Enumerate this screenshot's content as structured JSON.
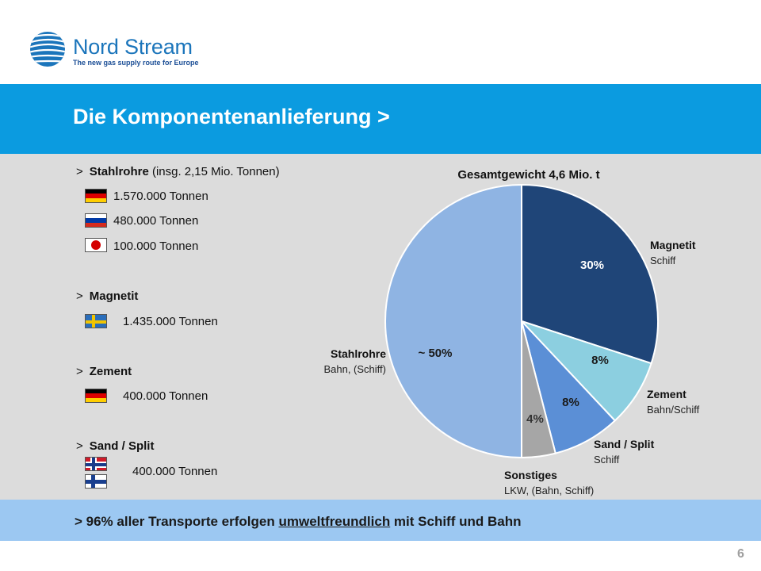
{
  "brand": {
    "name": "Nord Stream",
    "tagline": "The new gas supply route for Europe"
  },
  "slide": {
    "title": "Die Komponentenanlieferung >",
    "page_number": "6"
  },
  "left_panel": {
    "groups": [
      {
        "marker": ">",
        "label": "Stahlrohre",
        "detail": "(insg. 2,15 Mio. Tonnen)",
        "rows": [
          {
            "flag": "germany-flag",
            "text": "1.570.000 Tonnen"
          },
          {
            "flag": "russia-flag",
            "text": "480.000 Tonnen"
          },
          {
            "flag": "japan-flag",
            "text": "100.000 Tonnen"
          }
        ]
      },
      {
        "marker": ">",
        "label": "Magnetit",
        "rows": [
          {
            "flag": "sweden-flag",
            "text": "1.435.000 Tonnen"
          }
        ]
      },
      {
        "marker": ">",
        "label": "Zement",
        "rows": [
          {
            "flag": "germany-flag",
            "text": "400.000 Tonnen"
          }
        ]
      },
      {
        "marker": ">",
        "label": "Sand / Split",
        "rows": [
          {
            "flag": "norway-flag",
            "text": "400.000 Tonnen"
          },
          {
            "flag": "finland-flag",
            "text": ""
          }
        ]
      }
    ]
  },
  "footer": {
    "before": "> 96% aller Transporte erfolgen ",
    "underlined": "umweltfreundlich",
    "after": " mit Schiff und Bahn"
  },
  "colors": {
    "title_bar": "#0b9be0",
    "content_bg": "#dcdcdc",
    "footer_bar": "#9cc8f2",
    "brand_blue": "#1b75bb"
  },
  "chart_data": {
    "type": "pie",
    "title": "Gesamtgewicht 4,6 Mio. t",
    "slices": [
      {
        "name": "Magnetit",
        "sub": "Schiff",
        "value": 30,
        "label": "30%",
        "color": "#1f4578",
        "label_color": "#ffffff"
      },
      {
        "name": "Zement",
        "sub": "Bahn/Schiff",
        "value": 8,
        "label": "8%",
        "color": "#8ccfe0",
        "label_color": "#1a1a1a"
      },
      {
        "name": "Sand / Split",
        "sub": "Schiff",
        "value": 8,
        "label": "8%",
        "color": "#5b8fd6",
        "label_color": "#1a1a1a"
      },
      {
        "name": "Sonstiges",
        "sub": "LKW, (Bahn, Schiff)",
        "value": 4,
        "label": "4%",
        "color": "#a6a6a6",
        "label_color": "#333333"
      },
      {
        "name": "Stahlrohre",
        "sub": "Bahn, (Schiff)",
        "value": 50,
        "label": "~ 50%",
        "color": "#8fb4e3",
        "label_color": "#1a1a1a"
      }
    ]
  }
}
